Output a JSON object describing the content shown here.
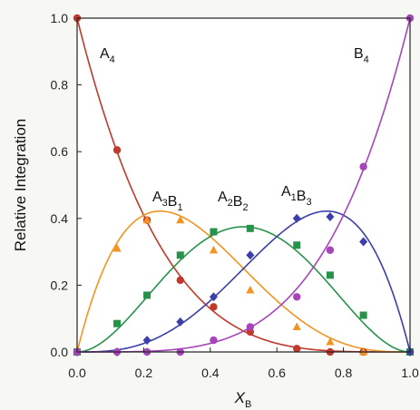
{
  "chart_data": {
    "type": "scatter",
    "xlabel_main": "X",
    "xlabel_sub": "B",
    "ylabel": "Relative Integration",
    "xlim": [
      0,
      1
    ],
    "ylim": [
      0,
      1
    ],
    "x_ticks": [
      "0.0",
      "0.2",
      "0.4",
      "0.6",
      "0.8",
      "1.0"
    ],
    "y_ticks": [
      "0.0",
      "0.2",
      "0.4",
      "0.6",
      "0.8",
      "1.0"
    ],
    "grid": false,
    "series": [
      {
        "label_parts": [
          [
            "A",
            "4"
          ]
        ],
        "color": "#c0392b",
        "marker": "circle",
        "fit": "a4",
        "points": [
          [
            0,
            1.0
          ],
          [
            0.12,
            0.605
          ],
          [
            0.21,
            0.395
          ],
          [
            0.31,
            0.215
          ],
          [
            0.41,
            0.135
          ],
          [
            0.52,
            0.06
          ],
          [
            0.66,
            0.01
          ],
          [
            0.76,
            0.0
          ],
          [
            0.86,
            0.0
          ],
          [
            1.0,
            0.0
          ]
        ]
      },
      {
        "label_parts": [
          [
            "A",
            "3"
          ],
          [
            "B",
            "1"
          ]
        ],
        "color": "#f39422",
        "marker": "triangle",
        "fit": "a3b1",
        "points": [
          [
            0,
            0.0
          ],
          [
            0.12,
            0.31
          ],
          [
            0.21,
            0.395
          ],
          [
            0.31,
            0.395
          ],
          [
            0.41,
            0.305
          ],
          [
            0.52,
            0.185
          ],
          [
            0.66,
            0.075
          ],
          [
            0.76,
            0.03
          ],
          [
            0.86,
            0.0
          ],
          [
            1.0,
            0.0
          ]
        ]
      },
      {
        "label_parts": [
          [
            "A",
            "2"
          ],
          [
            "B",
            "2"
          ]
        ],
        "color": "#27924a",
        "marker": "square",
        "fit": "a2b2",
        "points": [
          [
            0,
            0.0
          ],
          [
            0.12,
            0.085
          ],
          [
            0.21,
            0.17
          ],
          [
            0.31,
            0.29
          ],
          [
            0.41,
            0.36
          ],
          [
            0.52,
            0.37
          ],
          [
            0.66,
            0.32
          ],
          [
            0.76,
            0.23
          ],
          [
            0.86,
            0.11
          ],
          [
            1.0,
            0.0
          ]
        ]
      },
      {
        "label_parts": [
          [
            "A",
            "1"
          ],
          [
            "B",
            "3"
          ]
        ],
        "color": "#3c3fa8",
        "marker": "diamond",
        "fit": "a1b3",
        "points": [
          [
            0,
            0.0
          ],
          [
            0.12,
            0.0
          ],
          [
            0.21,
            0.035
          ],
          [
            0.31,
            0.09
          ],
          [
            0.41,
            0.165
          ],
          [
            0.52,
            0.29
          ],
          [
            0.66,
            0.4
          ],
          [
            0.76,
            0.405
          ],
          [
            0.86,
            0.33
          ],
          [
            1.0,
            0.0
          ]
        ]
      },
      {
        "label_parts": [
          [
            "B",
            "4"
          ]
        ],
        "color": "#a645ba",
        "marker": "circle",
        "fit": "b4",
        "points": [
          [
            0,
            0.0
          ],
          [
            0.12,
            0.0
          ],
          [
            0.21,
            0.0
          ],
          [
            0.31,
            0.0
          ],
          [
            0.41,
            0.035
          ],
          [
            0.52,
            0.075
          ],
          [
            0.66,
            0.165
          ],
          [
            0.76,
            0.305
          ],
          [
            0.86,
            0.555
          ],
          [
            1.0,
            1.0
          ]
        ]
      }
    ]
  }
}
